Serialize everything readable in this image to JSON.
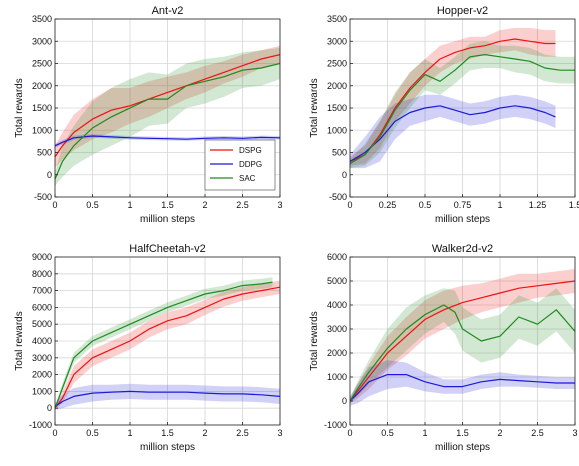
{
  "colors": {
    "DSPG": "#ee1111",
    "DDPG": "#1a1ad8",
    "SAC": "#1e8a1e",
    "grid": "#d6d6d6",
    "axis": "#222222"
  },
  "legend": {
    "placement": "lower-right of Ant-v2 panel",
    "entries": [
      "DSPG",
      "DDPG",
      "SAC"
    ]
  },
  "chart_data": [
    {
      "type": "line",
      "title": "Ant-v2",
      "xlabel": "million steps",
      "ylabel": "Total rewards",
      "xlim": [
        0,
        3
      ],
      "ylim": [
        -500,
        3500
      ],
      "xticks": [
        0,
        0.5,
        1,
        1.5,
        2,
        2.5,
        3
      ],
      "xtick_labels": [
        "0",
        "0.5",
        "1",
        "1.5",
        "2",
        "2.5",
        "3"
      ],
      "yticks": [
        -500,
        0,
        500,
        1000,
        1500,
        2000,
        2500,
        3000,
        3500
      ],
      "grid": true,
      "legend": true,
      "series": [
        {
          "name": "DSPG",
          "x": [
            0,
            0.1,
            0.25,
            0.5,
            0.75,
            1,
            1.25,
            1.5,
            1.75,
            2,
            2.25,
            2.5,
            2.75,
            3
          ],
          "values": [
            400,
            650,
            950,
            1250,
            1450,
            1550,
            1700,
            1850,
            2000,
            2150,
            2300,
            2450,
            2600,
            2700
          ],
          "band": [
            250,
            300,
            400,
            450,
            500,
            400,
            400,
            350,
            300,
            300,
            250,
            250,
            200,
            200
          ]
        },
        {
          "name": "DDPG",
          "x": [
            0,
            0.1,
            0.25,
            0.5,
            0.75,
            1,
            1.25,
            1.5,
            1.75,
            2,
            2.25,
            2.5,
            2.75,
            3
          ],
          "values": [
            650,
            730,
            830,
            870,
            850,
            830,
            820,
            810,
            800,
            820,
            830,
            820,
            840,
            830
          ],
          "band": [
            40,
            50,
            50,
            40,
            40,
            40,
            40,
            40,
            40,
            40,
            40,
            40,
            40,
            40
          ]
        },
        {
          "name": "SAC",
          "x": [
            0,
            0.1,
            0.25,
            0.5,
            0.75,
            1,
            1.25,
            1.5,
            1.75,
            2,
            2.25,
            2.5,
            2.75,
            3
          ],
          "values": [
            -100,
            300,
            650,
            1050,
            1300,
            1500,
            1700,
            1700,
            2000,
            2100,
            2200,
            2350,
            2400,
            2500
          ],
          "band": [
            150,
            350,
            450,
            600,
            650,
            650,
            600,
            550,
            500,
            500,
            450,
            400,
            400,
            350
          ]
        }
      ]
    },
    {
      "type": "line",
      "title": "Hopper-v2",
      "xlabel": "million steps",
      "ylabel": "Total rewards",
      "xlim": [
        0,
        1.5
      ],
      "ylim": [
        -500,
        3500
      ],
      "xticks": [
        0,
        0.25,
        0.5,
        0.75,
        1,
        1.25,
        1.5
      ],
      "xtick_labels": [
        "0",
        "0.25",
        "0.5",
        "0.75",
        "1",
        "1.25",
        "1.5"
      ],
      "yticks": [
        -500,
        0,
        500,
        1000,
        1500,
        2000,
        2500,
        3000,
        3500
      ],
      "grid": true,
      "series": [
        {
          "name": "DSPG",
          "x": [
            0,
            0.1,
            0.2,
            0.3,
            0.4,
            0.5,
            0.6,
            0.7,
            0.8,
            0.9,
            1,
            1.1,
            1.2,
            1.3,
            1.37
          ],
          "values": [
            300,
            450,
            900,
            1500,
            1950,
            2300,
            2600,
            2750,
            2850,
            2900,
            3000,
            3050,
            3000,
            2950,
            2950
          ],
          "band": [
            100,
            200,
            300,
            300,
            350,
            300,
            300,
            250,
            250,
            200,
            250,
            250,
            300,
            300,
            300
          ]
        },
        {
          "name": "DDPG",
          "x": [
            0,
            0.1,
            0.2,
            0.3,
            0.4,
            0.5,
            0.6,
            0.7,
            0.8,
            0.9,
            1,
            1.1,
            1.2,
            1.3,
            1.37
          ],
          "values": [
            300,
            500,
            800,
            1200,
            1400,
            1500,
            1550,
            1450,
            1350,
            1400,
            1500,
            1550,
            1500,
            1400,
            1300
          ],
          "band": [
            150,
            350,
            500,
            400,
            300,
            300,
            250,
            250,
            250,
            250,
            250,
            250,
            250,
            250,
            250
          ]
        },
        {
          "name": "SAC",
          "x": [
            0,
            0.1,
            0.2,
            0.3,
            0.4,
            0.5,
            0.6,
            0.7,
            0.8,
            0.9,
            1,
            1.1,
            1.2,
            1.3,
            1.4,
            1.5
          ],
          "values": [
            250,
            450,
            850,
            1450,
            1900,
            2250,
            2100,
            2350,
            2650,
            2700,
            2650,
            2600,
            2550,
            2400,
            2350,
            2350
          ],
          "band": [
            100,
            250,
            350,
            400,
            400,
            350,
            300,
            300,
            300,
            300,
            250,
            300,
            300,
            300,
            300,
            300
          ]
        }
      ]
    },
    {
      "type": "line",
      "title": "HalfCheetah-v2",
      "xlabel": "million steps",
      "ylabel": "Total rewards",
      "xlim": [
        0,
        3
      ],
      "ylim": [
        -1000,
        9000
      ],
      "xticks": [
        0,
        0.5,
        1,
        1.5,
        2,
        2.5,
        3
      ],
      "xtick_labels": [
        "0",
        "0.5",
        "1",
        "1.5",
        "2",
        "2.5",
        "3"
      ],
      "yticks": [
        -1000,
        0,
        1000,
        2000,
        3000,
        4000,
        5000,
        6000,
        7000,
        8000,
        9000
      ],
      "grid": true,
      "series": [
        {
          "name": "DSPG",
          "x": [
            0,
            0.1,
            0.25,
            0.5,
            0.75,
            1,
            1.25,
            1.5,
            1.75,
            2,
            2.25,
            2.5,
            2.75,
            3
          ],
          "values": [
            0,
            600,
            2000,
            3000,
            3500,
            4000,
            4700,
            5200,
            5500,
            6000,
            6500,
            6800,
            7000,
            7200
          ],
          "band": [
            100,
            300,
            500,
            500,
            500,
            500,
            500,
            500,
            500,
            450,
            450,
            400,
            400,
            400
          ]
        },
        {
          "name": "DDPG",
          "x": [
            0,
            0.1,
            0.25,
            0.5,
            0.75,
            1,
            1.25,
            1.5,
            1.75,
            2,
            2.25,
            2.5,
            2.75,
            3
          ],
          "values": [
            100,
            400,
            700,
            900,
            950,
            1000,
            950,
            950,
            950,
            900,
            850,
            850,
            800,
            700
          ],
          "band": [
            200,
            400,
            500,
            500,
            450,
            450,
            450,
            450,
            450,
            450,
            450,
            450,
            450,
            450
          ]
        },
        {
          "name": "SAC",
          "x": [
            0,
            0.1,
            0.25,
            0.5,
            0.75,
            1,
            1.25,
            1.5,
            1.75,
            2,
            2.25,
            2.5,
            2.75,
            2.9
          ],
          "values": [
            0,
            1200,
            3000,
            4000,
            4500,
            5000,
            5500,
            6000,
            6400,
            6800,
            7000,
            7300,
            7400,
            7500
          ],
          "band": [
            100,
            300,
            300,
            300,
            300,
            300,
            300,
            300,
            300,
            300,
            300,
            300,
            300,
            300
          ]
        }
      ]
    },
    {
      "type": "line",
      "title": "Walker2d-v2",
      "xlabel": "million steps",
      "ylabel": "Total rewards",
      "xlim": [
        0,
        3
      ],
      "ylim": [
        -1000,
        6000
      ],
      "xticks": [
        0,
        0.5,
        1,
        1.5,
        2,
        2.5,
        3
      ],
      "xtick_labels": [
        "0",
        "0.5",
        "1",
        "1.5",
        "2",
        "2.5",
        "3"
      ],
      "yticks": [
        -1000,
        0,
        1000,
        2000,
        3000,
        4000,
        5000,
        6000
      ],
      "grid": true,
      "series": [
        {
          "name": "DSPG",
          "x": [
            0,
            0.1,
            0.25,
            0.5,
            0.75,
            1,
            1.25,
            1.5,
            1.75,
            2,
            2.25,
            2.5,
            2.75,
            3
          ],
          "values": [
            0,
            400,
            1000,
            2000,
            2700,
            3400,
            3800,
            4100,
            4300,
            4500,
            4700,
            4800,
            4900,
            5000
          ],
          "band": [
            100,
            300,
            500,
            700,
            800,
            800,
            800,
            700,
            600,
            600,
            600,
            500,
            500,
            500
          ]
        },
        {
          "name": "DDPG",
          "x": [
            0,
            0.1,
            0.25,
            0.5,
            0.75,
            1,
            1.25,
            1.5,
            1.75,
            2,
            2.25,
            2.5,
            2.75,
            3
          ],
          "values": [
            0,
            300,
            800,
            1100,
            1100,
            800,
            600,
            600,
            800,
            900,
            850,
            800,
            750,
            750
          ],
          "band": [
            200,
            400,
            600,
            600,
            500,
            400,
            300,
            300,
            300,
            300,
            250,
            250,
            250,
            250
          ]
        },
        {
          "name": "SAC",
          "x": [
            0,
            0.1,
            0.25,
            0.5,
            0.75,
            1,
            1.25,
            1.4,
            1.5,
            1.75,
            2,
            2.25,
            2.5,
            2.75,
            3
          ],
          "values": [
            0,
            500,
            1200,
            2200,
            3000,
            3600,
            4000,
            3700,
            3000,
            2500,
            2700,
            3500,
            3200,
            3800,
            2900
          ],
          "band": [
            100,
            300,
            500,
            800,
            900,
            800,
            700,
            900,
            900,
            900,
            900,
            900,
            900,
            900,
            900
          ]
        }
      ]
    }
  ]
}
